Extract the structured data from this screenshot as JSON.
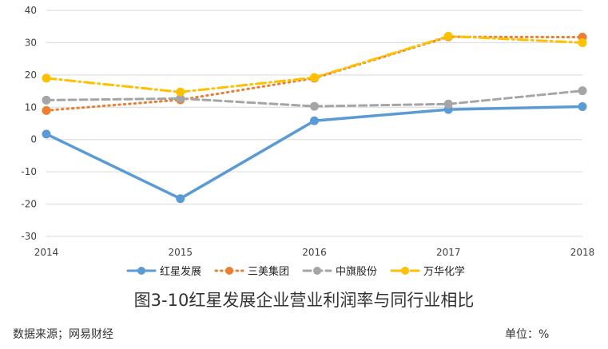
{
  "chart_data": {
    "type": "line",
    "categories": [
      "2014",
      "2015",
      "2016",
      "2017",
      "2018"
    ],
    "ylim": [
      -30,
      40
    ],
    "yticks": [
      40,
      30,
      20,
      10,
      0,
      -10,
      -20,
      -30
    ],
    "grid": true,
    "legend_position": "bottom",
    "series": [
      {
        "name": "红星发展",
        "values": [
          1.7,
          -18.3,
          5.8,
          9.3,
          10.2
        ],
        "color": "#5B9BD5",
        "style": "solid",
        "marker": "#5B9BD5"
      },
      {
        "name": "三美集团",
        "values": [
          9.0,
          12.3,
          19.0,
          31.8,
          31.7
        ],
        "color": "#ED7D31",
        "style": "dotted",
        "marker": "#ED7D31"
      },
      {
        "name": "中旗股份",
        "values": [
          12.2,
          12.7,
          10.3,
          11.0,
          15.1
        ],
        "color": "#A5A5A5",
        "style": "dashed",
        "marker": "#A5A5A5"
      },
      {
        "name": "万华化学",
        "values": [
          19.0,
          14.7,
          19.2,
          32.0,
          30.0
        ],
        "color": "#FFC000",
        "style": "dashdot",
        "marker": "#FFC000"
      }
    ]
  },
  "caption": "图3-10红星发展企业营业利润率与同行业相比",
  "source": "数据来源；网易财经",
  "unit": "单位：%"
}
